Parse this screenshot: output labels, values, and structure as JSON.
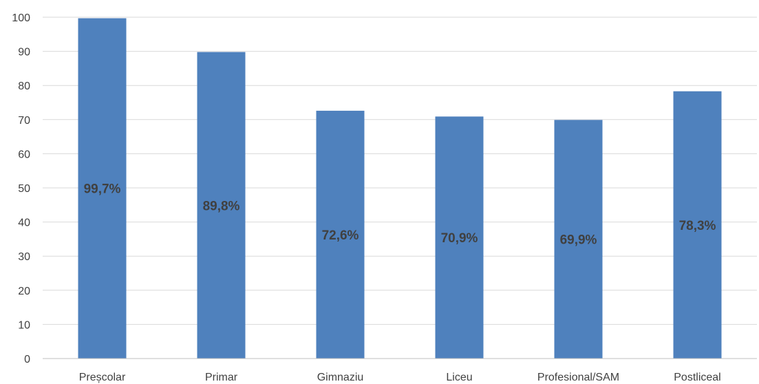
{
  "chart_data": {
    "type": "bar",
    "categories": [
      "Preșcolar",
      "Primar",
      "Gimnaziu",
      "Liceu",
      "Profesional/SAM",
      "Postliceal"
    ],
    "series": [
      {
        "values": [
          99.7,
          89.8,
          72.6,
          70.9,
          69.9,
          78.3
        ]
      }
    ],
    "data_labels": [
      "99,7%",
      "89,8%",
      "72,6%",
      "70,9%",
      "69,9%",
      "78,3%"
    ],
    "ylim": [
      0,
      100
    ],
    "yticks": [
      0,
      10,
      20,
      30,
      40,
      50,
      60,
      70,
      80,
      90,
      100
    ],
    "grid": true,
    "legend": "none",
    "title": "",
    "xlabel": "",
    "ylabel": "",
    "colors": {
      "bar": "#4f81bd",
      "grid": "#d9d9d9",
      "axis": "#bfbfbf",
      "text": "#404040"
    }
  }
}
